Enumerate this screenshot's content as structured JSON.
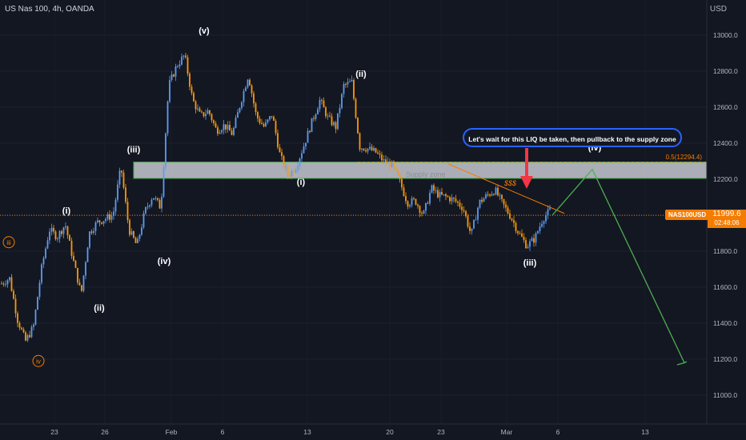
{
  "header": {
    "symbol_line": "US Nas 100, 4h, OANDA",
    "currency": "USD"
  },
  "symbol_tag": "NAS100USD",
  "last_price": "11999.6",
  "countdown": "02:48:06",
  "callout": "Let's wait for this LIQ be taken, then pullback to the supply zone",
  "supply_zone_label": "Supply zone",
  "fib_label": "0.5(12294.4)",
  "liquidity_label": "$$$",
  "colors": {
    "bg": "#131722",
    "up": "#5b9cf6",
    "down": "#ff9800",
    "zone": "#c7c9d1",
    "green": "#4caf50",
    "orange": "#f57c00",
    "callout_border": "#2962ff",
    "red": "#f23645"
  },
  "chart_data": {
    "type": "candlestick",
    "ylim": [
      10950,
      13100
    ],
    "y_ticks": [
      11000,
      11200,
      11400,
      11600,
      11800,
      12000,
      12200,
      12400,
      12600,
      12800,
      13000
    ],
    "y_tick_labels": [
      "11000.0",
      "11200.0",
      "11400.0",
      "11600.0",
      "11800.0",
      "12000.0",
      "12200.0",
      "12400.0",
      "12600.0",
      "12800.0",
      "13000.0"
    ],
    "x_ticks": [
      "23",
      "26",
      "Feb",
      "6",
      "13",
      "20",
      "23",
      "Mar",
      "6",
      "13"
    ],
    "last_price": 11999.6,
    "supply_zone": [
      12205,
      12295
    ],
    "fib_level": 12294.4,
    "price_path": [
      11620,
      11650,
      11420,
      11300,
      11380,
      11700,
      11920,
      11880,
      11950,
      11750,
      11560,
      11900,
      11960,
      11980,
      12000,
      12270,
      11920,
      11830,
      12020,
      12110,
      12040,
      12720,
      12830,
      12890,
      12640,
      12550,
      12580,
      12470,
      12500,
      12450,
      12620,
      12780,
      12550,
      12490,
      12560,
      12330,
      12220,
      12270,
      12390,
      12520,
      12640,
      12540,
      12490,
      12720,
      12740,
      12380,
      12370,
      12350,
      12300,
      12280,
      12190,
      12070,
      12080,
      12000,
      12150,
      12110,
      12100,
      12080,
      12040,
      11890,
      12070,
      12110,
      12140,
      12060,
      11990,
      11900,
      11830,
      11870,
      11980,
      12030
    ],
    "wave_labels": [
      {
        "text": "iii",
        "price": 11850,
        "circled": true
      },
      {
        "text": "iv",
        "price": 11190,
        "circled": true
      },
      {
        "text": "(i)",
        "price": 12010
      },
      {
        "text": "(ii)",
        "price": 11470
      },
      {
        "text": "(iii)",
        "price": 12350
      },
      {
        "text": "(iv)",
        "price": 11730
      },
      {
        "text": "(v)",
        "price": 13010
      },
      {
        "text": "(i)",
        "price": 12170
      },
      {
        "text": "(ii)",
        "price": 12770
      },
      {
        "text": "(iii)",
        "price": 11720
      },
      {
        "text": "(iv)",
        "price": 12360
      }
    ],
    "projection": [
      12000,
      12255,
      11180
    ]
  }
}
